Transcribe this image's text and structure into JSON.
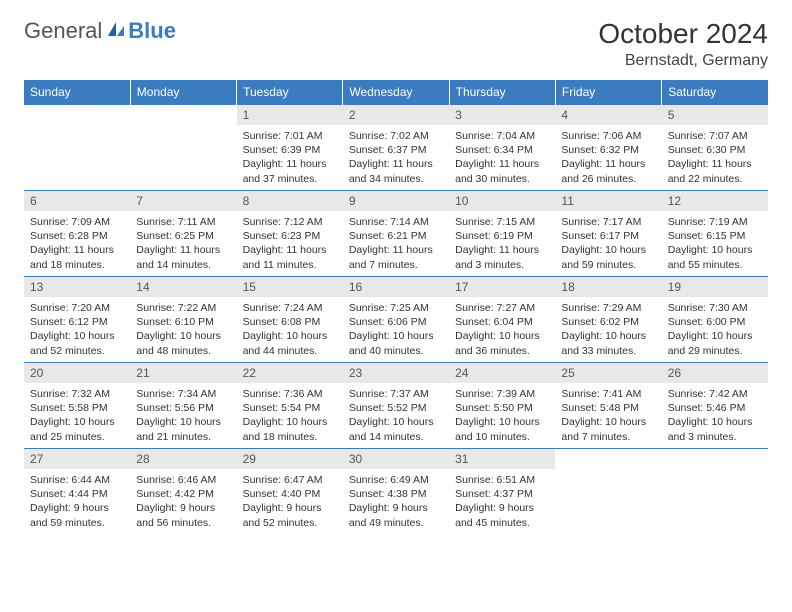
{
  "brand": {
    "part1": "General",
    "part2": "Blue"
  },
  "title": "October 2024",
  "location": "Bernstadt, Germany",
  "colors": {
    "header_bg": "#3b7bbf",
    "header_text": "#ffffff",
    "daynum_bg": "#e8e8e8",
    "border": "#3b7bbf",
    "text": "#333333"
  },
  "day_headers": [
    "Sunday",
    "Monday",
    "Tuesday",
    "Wednesday",
    "Thursday",
    "Friday",
    "Saturday"
  ],
  "weeks": [
    [
      null,
      null,
      {
        "n": "1",
        "sr": "7:01 AM",
        "ss": "6:39 PM",
        "d1": "11 hours",
        "d2": "and 37 minutes."
      },
      {
        "n": "2",
        "sr": "7:02 AM",
        "ss": "6:37 PM",
        "d1": "11 hours",
        "d2": "and 34 minutes."
      },
      {
        "n": "3",
        "sr": "7:04 AM",
        "ss": "6:34 PM",
        "d1": "11 hours",
        "d2": "and 30 minutes."
      },
      {
        "n": "4",
        "sr": "7:06 AM",
        "ss": "6:32 PM",
        "d1": "11 hours",
        "d2": "and 26 minutes."
      },
      {
        "n": "5",
        "sr": "7:07 AM",
        "ss": "6:30 PM",
        "d1": "11 hours",
        "d2": "and 22 minutes."
      }
    ],
    [
      {
        "n": "6",
        "sr": "7:09 AM",
        "ss": "6:28 PM",
        "d1": "11 hours",
        "d2": "and 18 minutes."
      },
      {
        "n": "7",
        "sr": "7:11 AM",
        "ss": "6:25 PM",
        "d1": "11 hours",
        "d2": "and 14 minutes."
      },
      {
        "n": "8",
        "sr": "7:12 AM",
        "ss": "6:23 PM",
        "d1": "11 hours",
        "d2": "and 11 minutes."
      },
      {
        "n": "9",
        "sr": "7:14 AM",
        "ss": "6:21 PM",
        "d1": "11 hours",
        "d2": "and 7 minutes."
      },
      {
        "n": "10",
        "sr": "7:15 AM",
        "ss": "6:19 PM",
        "d1": "11 hours",
        "d2": "and 3 minutes."
      },
      {
        "n": "11",
        "sr": "7:17 AM",
        "ss": "6:17 PM",
        "d1": "10 hours",
        "d2": "and 59 minutes."
      },
      {
        "n": "12",
        "sr": "7:19 AM",
        "ss": "6:15 PM",
        "d1": "10 hours",
        "d2": "and 55 minutes."
      }
    ],
    [
      {
        "n": "13",
        "sr": "7:20 AM",
        "ss": "6:12 PM",
        "d1": "10 hours",
        "d2": "and 52 minutes."
      },
      {
        "n": "14",
        "sr": "7:22 AM",
        "ss": "6:10 PM",
        "d1": "10 hours",
        "d2": "and 48 minutes."
      },
      {
        "n": "15",
        "sr": "7:24 AM",
        "ss": "6:08 PM",
        "d1": "10 hours",
        "d2": "and 44 minutes."
      },
      {
        "n": "16",
        "sr": "7:25 AM",
        "ss": "6:06 PM",
        "d1": "10 hours",
        "d2": "and 40 minutes."
      },
      {
        "n": "17",
        "sr": "7:27 AM",
        "ss": "6:04 PM",
        "d1": "10 hours",
        "d2": "and 36 minutes."
      },
      {
        "n": "18",
        "sr": "7:29 AM",
        "ss": "6:02 PM",
        "d1": "10 hours",
        "d2": "and 33 minutes."
      },
      {
        "n": "19",
        "sr": "7:30 AM",
        "ss": "6:00 PM",
        "d1": "10 hours",
        "d2": "and 29 minutes."
      }
    ],
    [
      {
        "n": "20",
        "sr": "7:32 AM",
        "ss": "5:58 PM",
        "d1": "10 hours",
        "d2": "and 25 minutes."
      },
      {
        "n": "21",
        "sr": "7:34 AM",
        "ss": "5:56 PM",
        "d1": "10 hours",
        "d2": "and 21 minutes."
      },
      {
        "n": "22",
        "sr": "7:36 AM",
        "ss": "5:54 PM",
        "d1": "10 hours",
        "d2": "and 18 minutes."
      },
      {
        "n": "23",
        "sr": "7:37 AM",
        "ss": "5:52 PM",
        "d1": "10 hours",
        "d2": "and 14 minutes."
      },
      {
        "n": "24",
        "sr": "7:39 AM",
        "ss": "5:50 PM",
        "d1": "10 hours",
        "d2": "and 10 minutes."
      },
      {
        "n": "25",
        "sr": "7:41 AM",
        "ss": "5:48 PM",
        "d1": "10 hours",
        "d2": "and 7 minutes."
      },
      {
        "n": "26",
        "sr": "7:42 AM",
        "ss": "5:46 PM",
        "d1": "10 hours",
        "d2": "and 3 minutes."
      }
    ],
    [
      {
        "n": "27",
        "sr": "6:44 AM",
        "ss": "4:44 PM",
        "d1": "9 hours",
        "d2": "and 59 minutes."
      },
      {
        "n": "28",
        "sr": "6:46 AM",
        "ss": "4:42 PM",
        "d1": "9 hours",
        "d2": "and 56 minutes."
      },
      {
        "n": "29",
        "sr": "6:47 AM",
        "ss": "4:40 PM",
        "d1": "9 hours",
        "d2": "and 52 minutes."
      },
      {
        "n": "30",
        "sr": "6:49 AM",
        "ss": "4:38 PM",
        "d1": "9 hours",
        "d2": "and 49 minutes."
      },
      {
        "n": "31",
        "sr": "6:51 AM",
        "ss": "4:37 PM",
        "d1": "9 hours",
        "d2": "and 45 minutes."
      },
      null,
      null
    ]
  ],
  "labels": {
    "sunrise": "Sunrise:",
    "sunset": "Sunset:",
    "daylight": "Daylight:"
  }
}
